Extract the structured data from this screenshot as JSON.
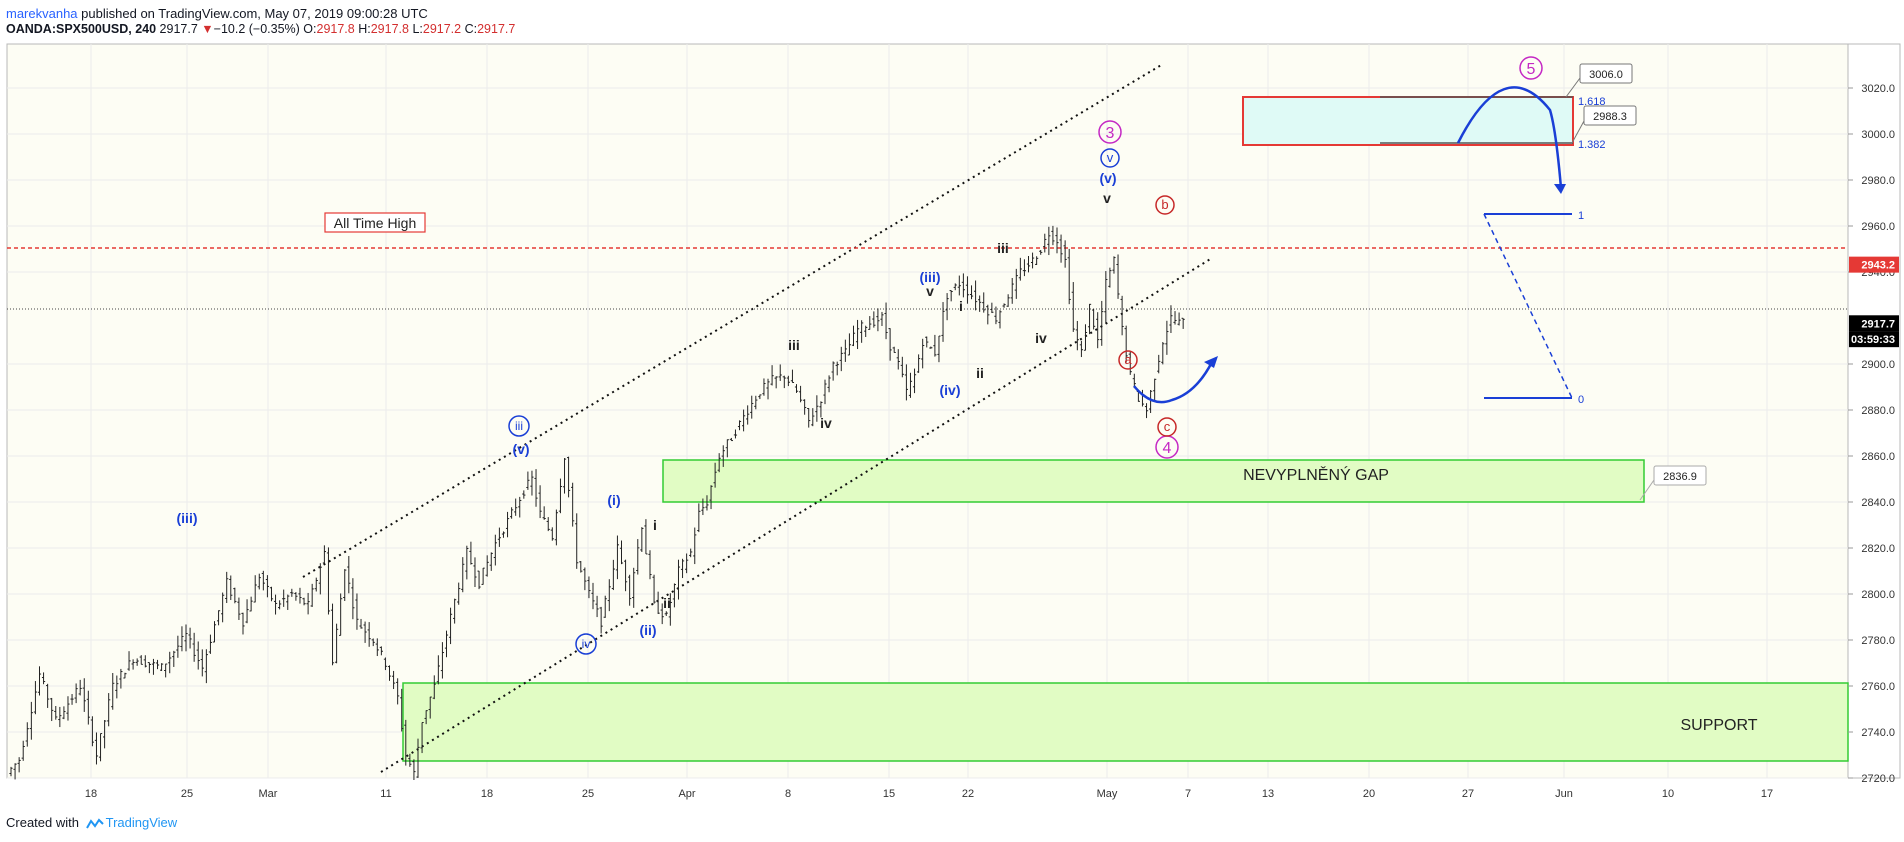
{
  "header": {
    "author": "marekvanha",
    "published_text": "published on TradingView.com, May 07, 2019 09:00:28 UTC",
    "symbol": "OANDA:SPX500USD, 240",
    "last": "2917.7",
    "change_arrow": "▼",
    "change": "−10.2 (−0.35%)",
    "o_label": "O:",
    "o_value": "2917.8",
    "h_label": "H:",
    "h_value": "2917.8",
    "l_label": "L:",
    "l_value": "2917.2",
    "c_label": "C:",
    "c_value": "2917.7"
  },
  "footer": {
    "created_with": "Created with",
    "brand": "TradingView"
  },
  "chart_data": {
    "type": "candlestick",
    "ylim": [
      2720,
      3030
    ],
    "x_ticks": [
      "18",
      "25",
      "Mar",
      "11",
      "18",
      "25",
      "Apr",
      "8",
      "15",
      "22",
      "May",
      "7",
      "13",
      "20",
      "27",
      "Jun",
      "10",
      "17"
    ],
    "y_ticks": [
      "3020.0",
      "3000.0",
      "2980.0",
      "2960.0",
      "2940.0",
      "2900.0",
      "2880.0",
      "2860.0",
      "2840.0",
      "2820.0",
      "2800.0",
      "2780.0",
      "2760.0",
      "2740.0",
      "2720.0"
    ],
    "price_labels": [
      {
        "text": "2943.2",
        "value": 2943.2,
        "color": "#e53935"
      },
      {
        "text": "2917.7",
        "value": 2917.7,
        "color": "#000000"
      },
      {
        "text": "03:59:33",
        "value": 2910.8,
        "color": "#000000"
      }
    ],
    "path_points": [
      [
        0,
        2722
      ],
      [
        3,
        2728
      ],
      [
        8,
        2765
      ],
      [
        12,
        2745
      ],
      [
        18,
        2760
      ],
      [
        22,
        2730
      ],
      [
        26,
        2760
      ],
      [
        31,
        2772
      ],
      [
        38,
        2768
      ],
      [
        44,
        2782
      ],
      [
        48,
        2768
      ],
      [
        54,
        2805
      ],
      [
        58,
        2788
      ],
      [
        62,
        2808
      ],
      [
        66,
        2795
      ],
      [
        70,
        2800
      ],
      [
        74,
        2795
      ],
      [
        78,
        2818
      ],
      [
        80,
        2770
      ],
      [
        83,
        2812
      ],
      [
        86,
        2788
      ],
      [
        90,
        2780
      ],
      [
        93,
        2770
      ],
      [
        96,
        2755
      ],
      [
        98,
        2730
      ],
      [
        100,
        2722
      ],
      [
        102,
        2745
      ],
      [
        105,
        2760
      ],
      [
        109,
        2790
      ],
      [
        113,
        2818
      ],
      [
        116,
        2805
      ],
      [
        120,
        2822
      ],
      [
        124,
        2835
      ],
      [
        127,
        2845
      ],
      [
        129,
        2850
      ],
      [
        131,
        2835
      ],
      [
        134,
        2825
      ],
      [
        137,
        2860
      ],
      [
        140,
        2815
      ],
      [
        143,
        2800
      ],
      [
        146,
        2788
      ],
      [
        150,
        2820
      ],
      [
        153,
        2800
      ],
      [
        156,
        2830
      ],
      [
        159,
        2795
      ],
      [
        162,
        2790
      ],
      [
        165,
        2810
      ],
      [
        168,
        2818
      ],
      [
        170,
        2835
      ],
      [
        172,
        2840
      ],
      [
        175,
        2860
      ],
      [
        178,
        2868
      ],
      [
        182,
        2880
      ],
      [
        185,
        2888
      ],
      [
        188,
        2893
      ],
      [
        191,
        2895
      ],
      [
        194,
        2888
      ],
      [
        197,
        2875
      ],
      [
        200,
        2885
      ],
      [
        203,
        2900
      ],
      [
        206,
        2905
      ],
      [
        209,
        2915
      ],
      [
        212,
        2918
      ],
      [
        215,
        2920
      ],
      [
        217,
        2908
      ],
      [
        219,
        2900
      ],
      [
        221,
        2888
      ],
      [
        223,
        2895
      ],
      [
        225,
        2910
      ],
      [
        228,
        2905
      ],
      [
        231,
        2930
      ],
      [
        234,
        2935
      ],
      [
        237,
        2930
      ],
      [
        240,
        2925
      ],
      [
        243,
        2920
      ],
      [
        246,
        2930
      ],
      [
        249,
        2940
      ],
      [
        252,
        2945
      ],
      [
        254,
        2950
      ],
      [
        256,
        2957
      ],
      [
        258,
        2954
      ],
      [
        260,
        2945
      ],
      [
        262,
        2915
      ],
      [
        264,
        2905
      ],
      [
        266,
        2925
      ],
      [
        268,
        2910
      ],
      [
        270,
        2935
      ],
      [
        272,
        2945
      ],
      [
        274,
        2915
      ],
      [
        276,
        2895
      ],
      [
        278,
        2885
      ],
      [
        280,
        2880
      ],
      [
        282,
        2895
      ],
      [
        284,
        2910
      ],
      [
        286,
        2920
      ],
      [
        288,
        2918
      ]
    ],
    "annotations": {
      "all_time_high": "All Time High",
      "gap": "NEVYPLNĚNÝ GAP",
      "support": "SUPPORT",
      "gap_price": "2836.9",
      "target_upper": "3006.0",
      "target_lower": "2988.3",
      "fib_1618": "1.618",
      "fib_1382": "1.382",
      "fib_1": "1",
      "fib_0": "0",
      "waves": {
        "w5": "5",
        "w3": "3",
        "w4": "4",
        "a": "a",
        "b": "b",
        "c": "c",
        "v_circ": "v",
        "iii_circ": "iii",
        "iv_circ": "iv",
        "v_paren_top": "(v)",
        "v_paren_left": "(v)",
        "iii_paren": "(iii)",
        "iii_paren_left": "(iii)",
        "iv_paren": "(iv)",
        "i_paren": "(i)",
        "ii_paren": "(ii)",
        "v": "v",
        "iii": "iii",
        "iv": "iv",
        "i": "i",
        "ii": "ii"
      }
    }
  }
}
